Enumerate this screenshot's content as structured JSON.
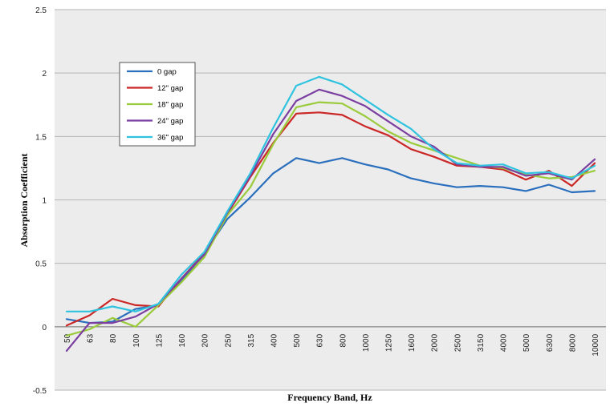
{
  "chart_data": {
    "type": "line",
    "title": "",
    "xlabel": "Frequency Band, Hz",
    "ylabel": "Absorption Coefficient",
    "ylim": [
      -0.5,
      2.5
    ],
    "yticks": [
      "-0.5",
      "0",
      "0.5",
      "1",
      "1.5",
      "2",
      "2.5"
    ],
    "grid": true,
    "legend_position": "upper-left",
    "categories": [
      "50",
      "63",
      "80",
      "100",
      "125",
      "160",
      "200",
      "250",
      "315",
      "400",
      "500",
      "630",
      "800",
      "1000",
      "1250",
      "1600",
      "2000",
      "2500",
      "3150",
      "4000",
      "5000",
      "6300",
      "8000",
      "10000"
    ],
    "series": [
      {
        "name": "0 gap",
        "color": "#2a6fbd",
        "values": [
          0.06,
          0.03,
          0.04,
          0.14,
          0.17,
          0.36,
          0.58,
          0.85,
          1.02,
          1.21,
          1.33,
          1.29,
          1.33,
          1.28,
          1.24,
          1.17,
          1.13,
          1.1,
          1.11,
          1.1,
          1.07,
          1.12,
          1.06,
          1.07
        ]
      },
      {
        "name": "12\" gap",
        "color": "#cc2727",
        "values": [
          0.01,
          0.09,
          0.22,
          0.17,
          0.16,
          0.38,
          0.58,
          0.89,
          1.18,
          1.45,
          1.68,
          1.69,
          1.67,
          1.58,
          1.51,
          1.4,
          1.34,
          1.27,
          1.26,
          1.24,
          1.16,
          1.23,
          1.11,
          1.29
        ]
      },
      {
        "name": "18\" gap",
        "color": "#9acb3b",
        "values": [
          -0.07,
          -0.02,
          0.07,
          0.0,
          0.17,
          0.35,
          0.55,
          0.88,
          1.1,
          1.44,
          1.73,
          1.77,
          1.76,
          1.66,
          1.54,
          1.45,
          1.39,
          1.33,
          1.27,
          1.25,
          1.2,
          1.17,
          1.18,
          1.23
        ]
      },
      {
        "name": "24\" gap",
        "color": "#7a3fa0",
        "values": [
          -0.19,
          0.03,
          0.03,
          0.08,
          0.18,
          0.38,
          0.57,
          0.9,
          1.19,
          1.52,
          1.78,
          1.87,
          1.82,
          1.74,
          1.62,
          1.5,
          1.42,
          1.28,
          1.26,
          1.26,
          1.19,
          1.21,
          1.16,
          1.32
        ]
      },
      {
        "name": "36\" gap",
        "color": "#2fc3e0",
        "values": [
          0.12,
          0.12,
          0.16,
          0.12,
          0.18,
          0.41,
          0.59,
          0.91,
          1.21,
          1.57,
          1.9,
          1.97,
          1.91,
          1.79,
          1.67,
          1.56,
          1.4,
          1.29,
          1.27,
          1.28,
          1.21,
          1.22,
          1.17,
          1.27
        ]
      }
    ]
  }
}
